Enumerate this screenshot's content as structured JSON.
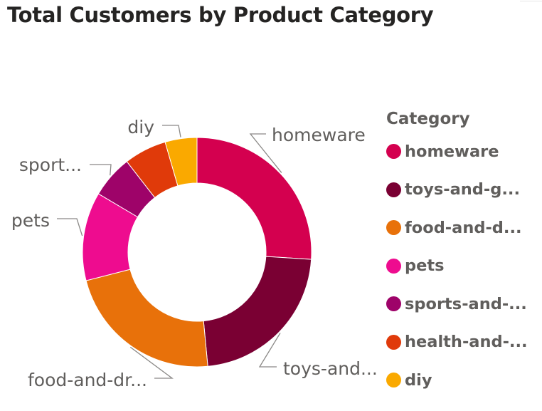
{
  "chart_data": {
    "type": "pie",
    "title": "Total Customers by Product Category",
    "donut": true,
    "legend_title": "Category",
    "legend_position": "right",
    "slices": [
      {
        "category": "homeware",
        "label": "homeware",
        "legend_label": "homeware",
        "value": 26.0,
        "color": "#D4004F"
      },
      {
        "category": "toys-and-games",
        "label": "toys-and...",
        "legend_label": "toys-and-g...",
        "value": 22.5,
        "color": "#7A0033"
      },
      {
        "category": "food-and-drink",
        "label": "food-and-dr...",
        "legend_label": "food-and-d...",
        "value": 22.5,
        "color": "#E8710A"
      },
      {
        "category": "pets",
        "label": "pets",
        "legend_label": "pets",
        "value": 12.5,
        "color": "#EE0C8F"
      },
      {
        "category": "sports-and-leisure",
        "label": "sport...",
        "legend_label": "sports-and-...",
        "value": 6.0,
        "color": "#9E0369"
      },
      {
        "category": "health-and-beauty",
        "label": "",
        "legend_label": "health-and-...",
        "value": 6.0,
        "color": "#E03A0A"
      },
      {
        "category": "diy",
        "label": "diy",
        "legend_label": "diy",
        "value": 4.5,
        "color": "#FAA900"
      }
    ]
  }
}
